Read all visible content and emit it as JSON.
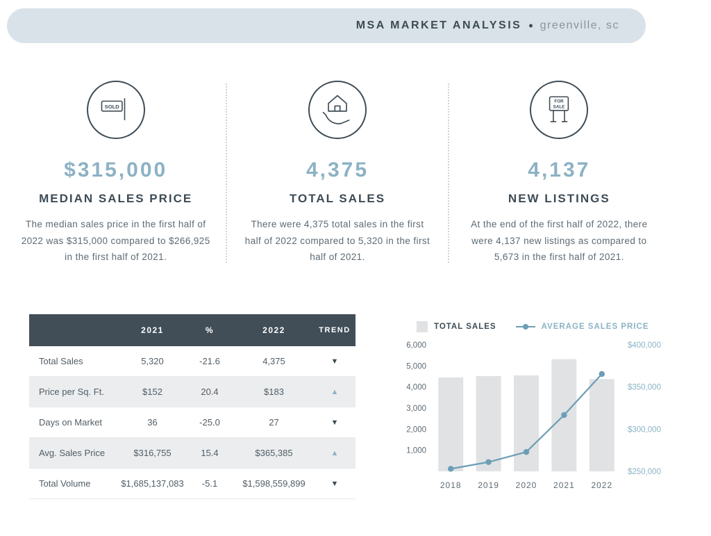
{
  "header": {
    "title": "MSA MARKET ANALYSIS",
    "separator": "•",
    "location": "greenville, sc"
  },
  "stats": [
    {
      "icon": "sold-sign-icon",
      "value": "$315,000",
      "label": "MEDIAN SALES PRICE",
      "description": "The median sales price in the first half of 2022 was $315,000 compared to $266,925 in the first half of 2021."
    },
    {
      "icon": "house-in-hand-icon",
      "value": "4,375",
      "label": "TOTAL SALES",
      "description": "There were 4,375 total sales in the first half of 2022 compared to 5,320 in the first half of 2021."
    },
    {
      "icon": "for-sale-sign-icon",
      "value": "4,137",
      "label": "NEW LISTINGS",
      "description": "At the end of the first half of 2022, there were 4,137 new listings as compared to 5,673 in the first half of 2021."
    }
  ],
  "table": {
    "headers": [
      "2021",
      "%",
      "2022",
      "TREND"
    ],
    "rows": [
      {
        "label": "Total Sales",
        "y2021": "5,320",
        "pct": "-21.6",
        "y2022": "4,375",
        "trend": "down"
      },
      {
        "label": "Price per Sq. Ft.",
        "y2021": "$152",
        "pct": "20.4",
        "y2022": "$183",
        "trend": "up"
      },
      {
        "label": "Days on Market",
        "y2021": "36",
        "pct": "-25.0",
        "y2022": "27",
        "trend": "down"
      },
      {
        "label": "Avg. Sales Price",
        "y2021": "$316,755",
        "pct": "15.4",
        "y2022": "$365,385",
        "trend": "up"
      },
      {
        "label": "Total Volume",
        "y2021": "$1,685,137,083",
        "pct": "-5.1",
        "y2022": "$1,598,559,899",
        "trend": "down"
      }
    ],
    "trend_glyphs": {
      "up": "▲",
      "down": "▼"
    }
  },
  "chart_data": {
    "type": "bar",
    "subtype": "bar-line-combo",
    "categories": [
      "2018",
      "2019",
      "2020",
      "2021",
      "2022"
    ],
    "series": [
      {
        "name": "TOTAL SALES",
        "type": "bar",
        "axis": "left",
        "values": [
          4450,
          4520,
          4550,
          5320,
          4375
        ]
      },
      {
        "name": "AVERAGE SALES PRICE",
        "type": "line",
        "axis": "right",
        "values": [
          253000,
          261000,
          273000,
          316755,
          365385
        ]
      }
    ],
    "left_axis": {
      "min": 0,
      "max": 6000,
      "tick_values": [
        6000,
        5000,
        4000,
        3000,
        2000,
        1000
      ],
      "tick_labels": [
        "6,000",
        "5,000",
        "4,000",
        "3,000",
        "2,000",
        "1,000"
      ]
    },
    "right_axis": {
      "min": 250000,
      "max": 400000,
      "tick_values": [
        400000,
        350000,
        300000,
        250000
      ],
      "tick_labels": [
        "$400,000",
        "$350,000",
        "$300,000",
        "$250,000"
      ]
    },
    "legend_position": "top",
    "grid": false
  },
  "colors": {
    "accent_blue": "#8cb2c4",
    "line_blue": "#6d9eb6",
    "dark_navy": "#3d4b54",
    "banner_bg": "#d9e2e8",
    "bar_gray": "#e0e2e4",
    "row_stripe": "#ebedee"
  }
}
